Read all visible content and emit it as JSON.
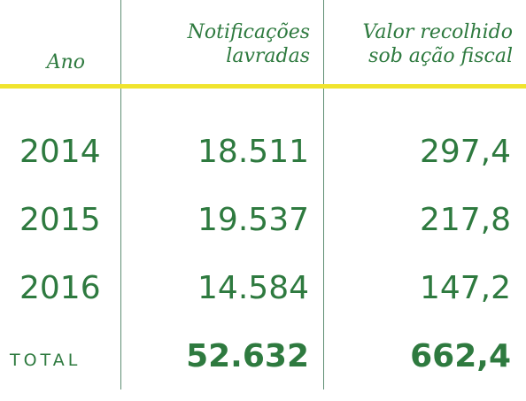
{
  "colors": {
    "text": "#2e7a3f",
    "rule": "#f0e42e",
    "divider": "#5f8f74",
    "background": "#ffffff"
  },
  "table": {
    "headers": {
      "year": "Ano",
      "notifications_line1": "Notificações",
      "notifications_line2": "lavradas",
      "amount_line1": "Valor recolhido",
      "amount_line2": "sob ação fiscal"
    },
    "rows": [
      {
        "year": "2014",
        "notifications": "18.511",
        "amount": "297,4"
      },
      {
        "year": "2015",
        "notifications": "19.537",
        "amount": "217,8"
      },
      {
        "year": "2016",
        "notifications": "14.584",
        "amount": "147,2"
      }
    ],
    "total": {
      "label": "TOTAL",
      "notifications": "52.632",
      "amount": "662,4"
    }
  }
}
